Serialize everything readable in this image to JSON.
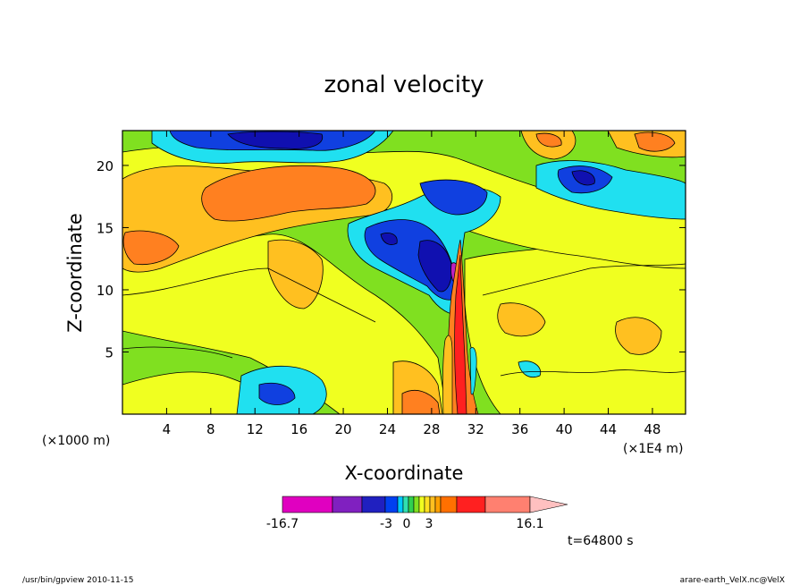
{
  "chart_data": {
    "type": "heatmap",
    "title": "zonal velocity",
    "xlabel": "X-coordinate",
    "ylabel": "Z-coordinate",
    "x_unit_left": "(×1000 m)",
    "x_unit_right": "(×1E4 m)",
    "xlim": [
      0,
      51
    ],
    "ylim": [
      0,
      22.8
    ],
    "x_ticks": [
      4,
      8,
      12,
      16,
      20,
      24,
      28,
      32,
      36,
      40,
      44,
      48
    ],
    "y_ticks": [
      5,
      10,
      15,
      20
    ],
    "colorbar": {
      "levels": [
        -16.7,
        -12,
        -8,
        -4,
        -3,
        -2,
        -1,
        0,
        1,
        2,
        3,
        4,
        6,
        9,
        12,
        16.1
      ],
      "colors": [
        "#e000c0",
        "#8020c0",
        "#2020c0",
        "#0040f0",
        "#00c8ff",
        "#30e0b0",
        "#30d050",
        "#80e020",
        "#f0ff20",
        "#ffe020",
        "#ffc020",
        "#ffa000",
        "#ff7000",
        "#ff2020",
        "#ff8070",
        "#ffc0c0"
      ],
      "tick_labels": [
        "-16.7",
        "-3",
        "0",
        "3",
        "16.1"
      ]
    },
    "time_label": "t=64800 s",
    "fields": {
      "background": "#80e020",
      "yellow": "#f0ff20",
      "light_orange": "#ffc020",
      "orange": "#ff8020",
      "cyan": "#20e0f0",
      "blue": "#1040e0",
      "dark_blue": "#1010b0",
      "magenta": "#c020c0",
      "red": "#ff2020"
    }
  },
  "footer": {
    "left": "/usr/bin/gpview   2010-11-15",
    "right": "arare-earth_VelX.nc@VelX"
  }
}
